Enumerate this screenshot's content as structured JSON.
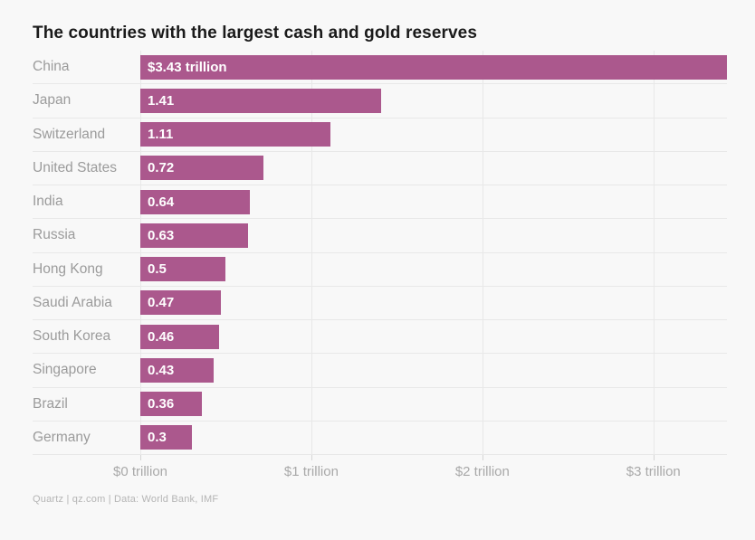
{
  "title": "The countries with the largest cash and gold reserves",
  "footer": "Quartz | qz.com | Data: World Bank, IMF",
  "colors": {
    "background": "#f8f8f8",
    "bar": "#ab588d",
    "grid": "#e8e8e8",
    "title_text": "#1a1a1a",
    "category_text": "#9b9b9b",
    "value_text": "#ffffff",
    "axis_text": "#a9a9a9",
    "footer_text": "#b5b5b5"
  },
  "chart_data": {
    "type": "bar",
    "orientation": "horizontal",
    "title": "The countries with the largest cash and gold reserves",
    "xlabel": "",
    "ylabel": "",
    "unit": "trillion USD",
    "categories": [
      "China",
      "Japan",
      "Switzerland",
      "United States",
      "India",
      "Russia",
      "Hong Kong",
      "Saudi Arabia",
      "South Korea",
      "Singapore",
      "Brazil",
      "Germany"
    ],
    "values": [
      3.43,
      1.41,
      1.11,
      0.72,
      0.64,
      0.63,
      0.5,
      0.47,
      0.46,
      0.43,
      0.36,
      0.3
    ],
    "bar_labels": [
      "$3.43 trillion",
      "1.41",
      "1.11",
      "0.72",
      "0.64",
      "0.63",
      "0.5",
      "0.47",
      "0.46",
      "0.43",
      "0.36",
      "0.3"
    ],
    "x_ticks": [
      {
        "value": 0,
        "label": "$0 trillion"
      },
      {
        "value": 1,
        "label": "$1 trillion"
      },
      {
        "value": 2,
        "label": "$2 trillion"
      },
      {
        "value": 3,
        "label": "$3 trillion"
      }
    ],
    "xlim": [
      0,
      3.43
    ],
    "grid": true,
    "legend": false
  }
}
